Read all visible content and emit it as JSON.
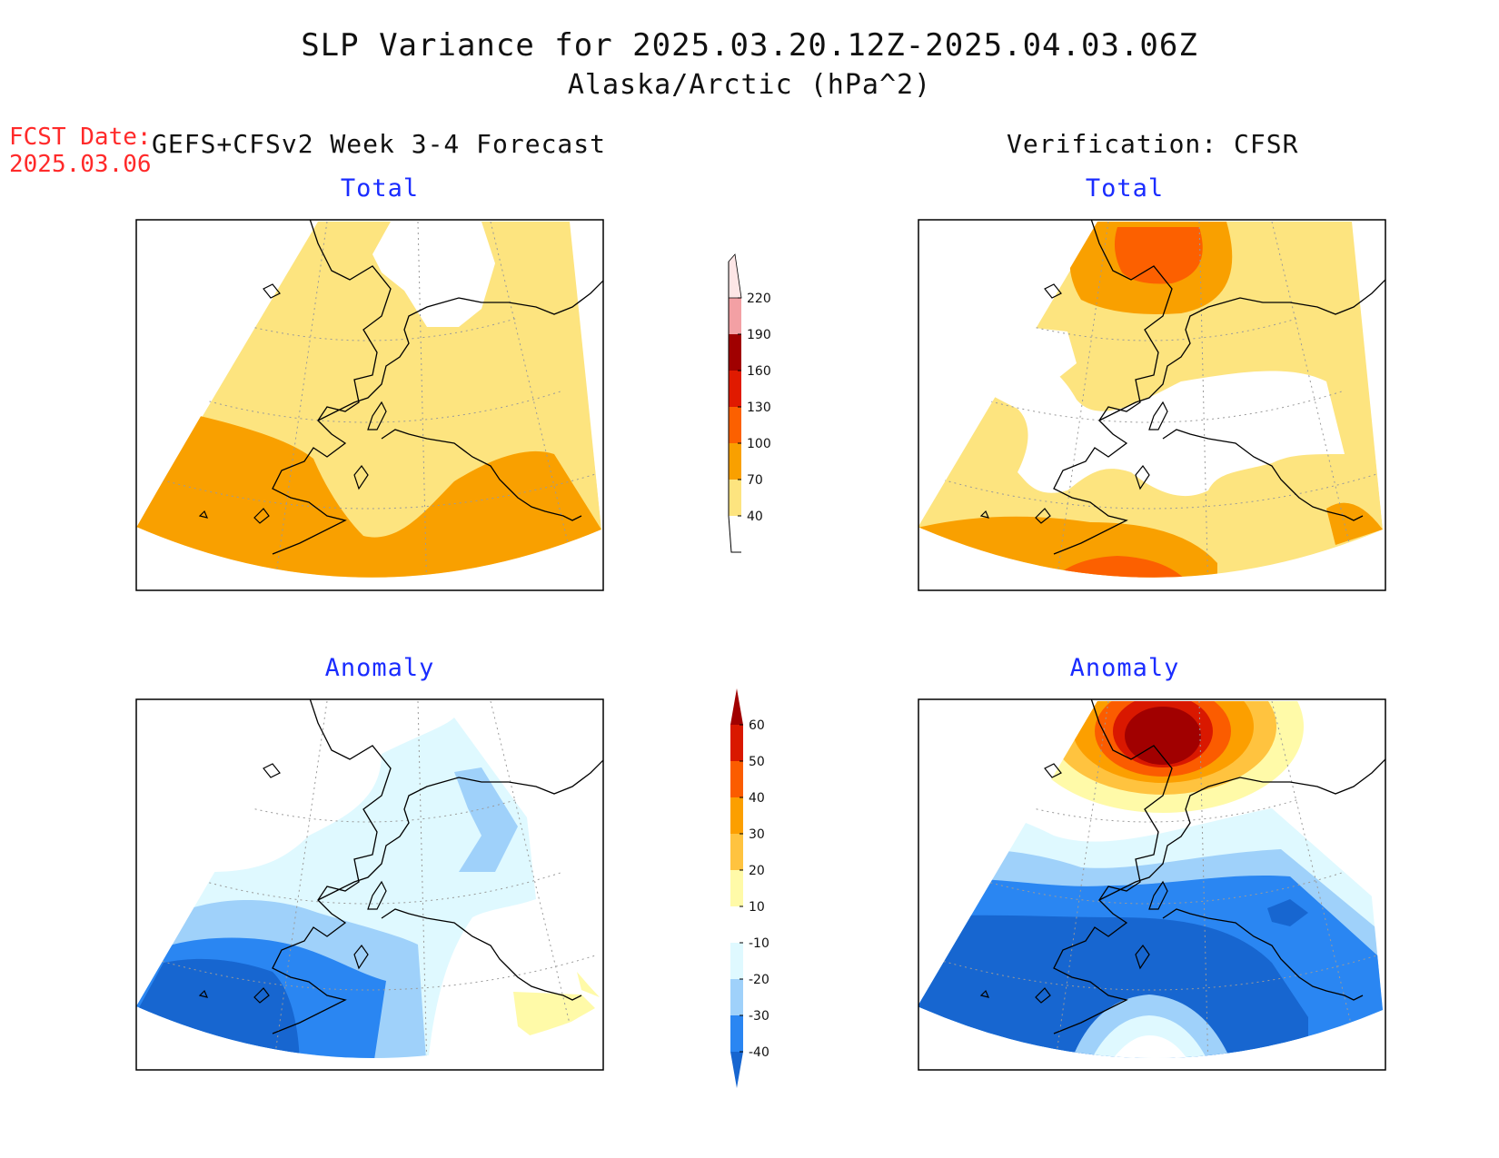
{
  "header": {
    "title": "SLP Variance for 2025.03.20.12Z-2025.04.03.06Z",
    "subtitle": "Alaska/Arctic (hPa^2)",
    "fcst_date_label": "FCST Date:",
    "fcst_date_value": "2025.03.06",
    "left_column_title": "GEFS+CFSv2 Week 3-4 Forecast",
    "right_column_title": "Verification: CFSR"
  },
  "panels": {
    "forecast_total": "Total",
    "verification_total": "Total",
    "forecast_anomaly": "Anomaly",
    "verification_anomaly": "Anomaly"
  },
  "colorbars": {
    "total": {
      "levels": [
        "40",
        "70",
        "100",
        "130",
        "160",
        "190",
        "220"
      ],
      "colors": [
        "#fde47f",
        "#f9a000",
        "#fc6000",
        "#e01a00",
        "#a00000",
        "#f3a0a4",
        "#fde6e6"
      ]
    },
    "anomaly": {
      "levels": [
        "-40",
        "-30",
        "-20",
        "-10",
        "10",
        "20",
        "30",
        "40",
        "50",
        "60"
      ],
      "colors": [
        "#1766d0",
        "#2a86f2",
        "#9fd1fa",
        "#dff9ff",
        "#ffffff",
        "#fffaa8",
        "#ffc33f",
        "#fc9f00",
        "#fb5c00",
        "#d91800",
        "#a10000"
      ]
    }
  },
  "map_colors": {
    "ocean_white": "#ffffff",
    "coastline": "#000000",
    "graticule": "#9a9a9a"
  }
}
